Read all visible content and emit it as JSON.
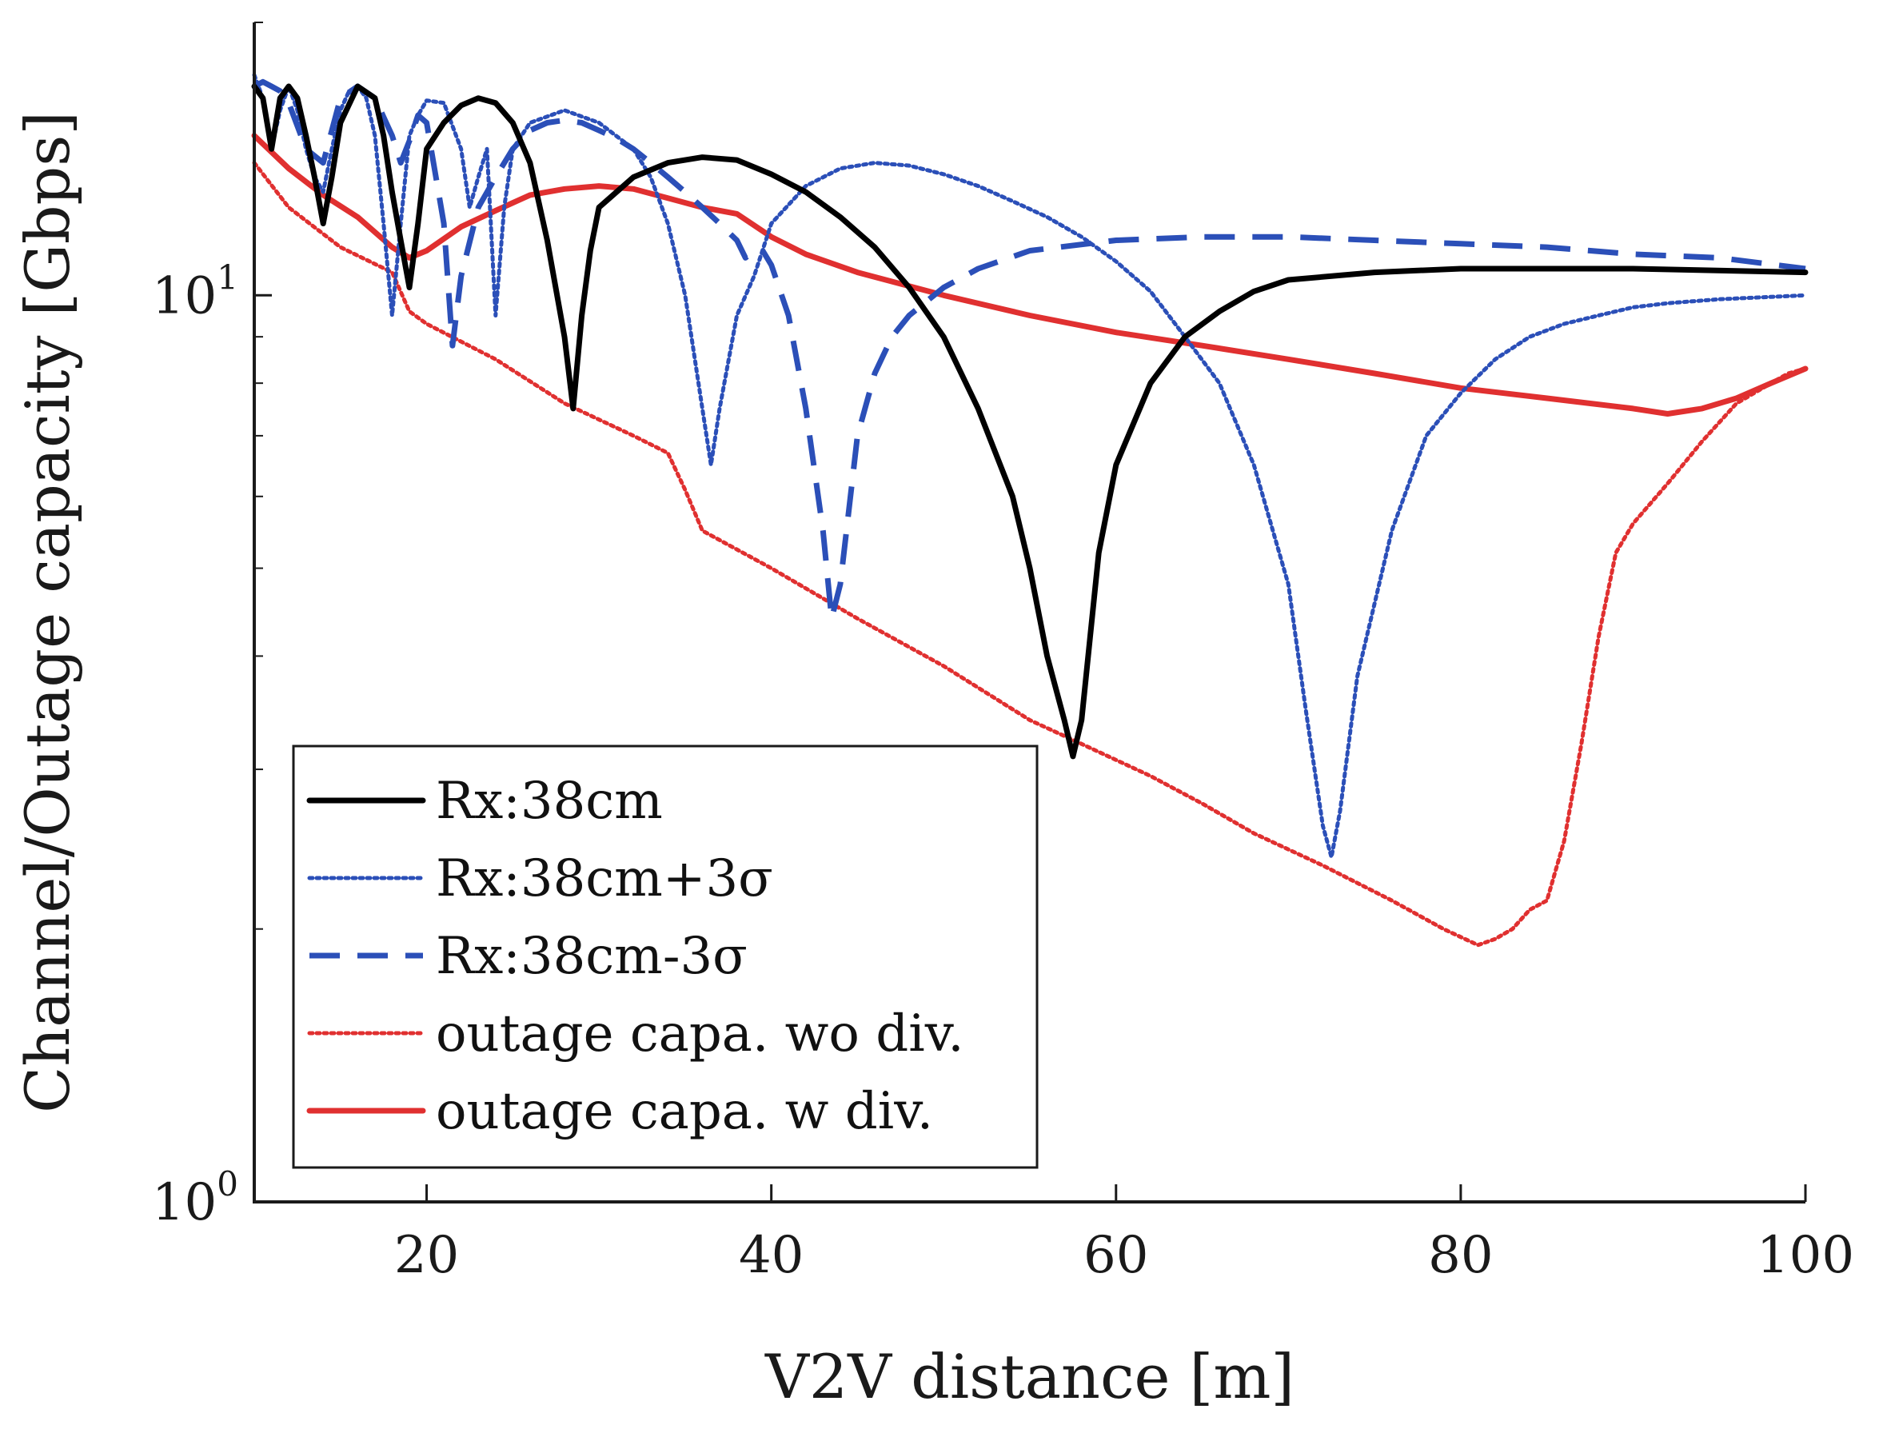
{
  "chart_data": {
    "type": "line",
    "xlabel": "V2V distance [m]",
    "ylabel": "Channel/Outage capacity [Gbps]",
    "xlim": [
      10,
      100
    ],
    "ylim": [
      1,
      20
    ],
    "yscale": "log",
    "xticks": [
      {
        "value": 20,
        "label": "20"
      },
      {
        "value": 40,
        "label": "40"
      },
      {
        "value": 60,
        "label": "60"
      },
      {
        "value": 80,
        "label": "80"
      },
      {
        "value": 100,
        "label": "100"
      }
    ],
    "yticks": [
      {
        "value": 1,
        "base": "10",
        "exp": "0"
      },
      {
        "value": 10,
        "base": "10",
        "exp": "1"
      }
    ],
    "legend_position": "bottom-left",
    "series": [
      {
        "name": "Rx:38cm",
        "color": "#000000",
        "style": "solid",
        "x": [
          10,
          10.5,
          11,
          11.5,
          12,
          12.5,
          13,
          13.5,
          14,
          14.5,
          15,
          16,
          17,
          17.5,
          18,
          18.5,
          19,
          19.5,
          20,
          21,
          22,
          23,
          24,
          25,
          26,
          27,
          28,
          28.5,
          29,
          29.5,
          30,
          32,
          34,
          36,
          38,
          40,
          42,
          44,
          46,
          48,
          50,
          52,
          54,
          55,
          56,
          57,
          57.5,
          58,
          58.5,
          59,
          60,
          62,
          64,
          66,
          68,
          70,
          75,
          80,
          90,
          100
        ],
        "y": [
          17,
          16.5,
          14.5,
          16.5,
          17,
          16.5,
          15,
          13.5,
          12,
          13.5,
          15.5,
          17,
          16.5,
          15,
          13,
          11.5,
          10.2,
          12,
          14.5,
          15.5,
          16.2,
          16.5,
          16.3,
          15.5,
          14,
          11.5,
          9,
          7.5,
          9.5,
          11.2,
          12.5,
          13.5,
          14,
          14.2,
          14.1,
          13.6,
          13,
          12.2,
          11.3,
          10.2,
          9,
          7.5,
          6,
          5,
          4,
          3.4,
          3.1,
          3.4,
          4.2,
          5.2,
          6.5,
          8,
          9,
          9.6,
          10.1,
          10.4,
          10.6,
          10.7,
          10.7,
          10.6
        ]
      },
      {
        "name": "Rx:38cm+3σ",
        "color": "#2b4fb8",
        "style": "dotted",
        "x": [
          10,
          10.5,
          11,
          11.5,
          12,
          12.5,
          13,
          13.5,
          14,
          14.5,
          15,
          15.5,
          16,
          16.5,
          17,
          17.5,
          18,
          18.5,
          19,
          19.5,
          20,
          21,
          22,
          22.5,
          23,
          23.5,
          24,
          24.5,
          25,
          26,
          28,
          30,
          32,
          33,
          34,
          35,
          36,
          36.5,
          37,
          38,
          39,
          40,
          42,
          44,
          46,
          48,
          50,
          52,
          54,
          56,
          58,
          60,
          62,
          64,
          66,
          68,
          70,
          71,
          72,
          72.5,
          73,
          74,
          76,
          78,
          80,
          82,
          84,
          86,
          88,
          90,
          92,
          95,
          100
        ],
        "y": [
          17.5,
          16.5,
          14.5,
          16,
          17,
          16,
          14.5,
          13.5,
          13,
          14.5,
          16,
          16.8,
          17,
          16.5,
          15,
          12,
          9.5,
          12,
          15,
          15.8,
          16.4,
          16.3,
          14.5,
          12.5,
          13.5,
          14.5,
          9.5,
          12.5,
          14.5,
          15.5,
          16,
          15.5,
          14.5,
          13.5,
          12,
          10,
          7.5,
          6.5,
          7.5,
          9.5,
          10.5,
          12,
          13.2,
          13.8,
          14,
          13.9,
          13.6,
          13.2,
          12.7,
          12.2,
          11.6,
          10.9,
          10.1,
          9,
          8,
          6.5,
          4.8,
          3.5,
          2.6,
          2.4,
          2.7,
          3.8,
          5.5,
          7,
          7.8,
          8.5,
          9,
          9.3,
          9.5,
          9.7,
          9.8,
          9.9,
          10
        ]
      },
      {
        "name": "Rx:38cm-3σ",
        "color": "#2b4fb8",
        "style": "dashed",
        "x": [
          10,
          10.5,
          11,
          11.5,
          12,
          13,
          14,
          15,
          16,
          17,
          18,
          18.5,
          19,
          19.5,
          20,
          21,
          21.5,
          22,
          23,
          24,
          25,
          26,
          27,
          28,
          29,
          30,
          31,
          32,
          33,
          34,
          35,
          36,
          37,
          38,
          38.5,
          39,
          39.5,
          40,
          41,
          42,
          43,
          43.5,
          44,
          44.5,
          45,
          46,
          47,
          48,
          50,
          52,
          55,
          60,
          65,
          70,
          75,
          80,
          85,
          90,
          95,
          100
        ],
        "y": [
          17,
          17.2,
          17,
          16.8,
          16.3,
          14.5,
          14,
          16.5,
          17,
          16.5,
          15,
          14,
          14.8,
          15.8,
          15.5,
          12,
          8.8,
          10.5,
          12.5,
          13.5,
          14.5,
          15.2,
          15.5,
          15.6,
          15.5,
          15.2,
          14.9,
          14.5,
          14,
          13.5,
          13,
          12.5,
          12,
          11.5,
          11,
          11.2,
          11.2,
          10.8,
          9.5,
          7.5,
          5.5,
          4.4,
          4.8,
          5.8,
          7,
          8.2,
          9,
          9.5,
          10.2,
          10.7,
          11.2,
          11.5,
          11.6,
          11.6,
          11.5,
          11.4,
          11.3,
          11.1,
          11,
          10.7
        ]
      },
      {
        "name": "outage capa. wo div.",
        "color": "#e03030",
        "style": "dotted",
        "x": [
          10,
          12,
          15,
          18,
          19,
          20,
          24,
          28,
          32,
          34,
          35,
          36,
          40,
          45,
          50,
          55,
          58,
          62,
          65,
          68,
          72,
          76,
          79,
          81,
          82,
          83,
          84,
          85,
          86,
          87,
          88,
          89,
          90,
          92,
          94,
          96,
          98,
          99,
          100
        ],
        "y": [
          14,
          12.5,
          11.3,
          10.6,
          9.6,
          9.3,
          8.5,
          7.6,
          7,
          6.7,
          6.1,
          5.5,
          5,
          4.4,
          3.9,
          3.4,
          3.2,
          2.95,
          2.75,
          2.55,
          2.35,
          2.15,
          2,
          1.92,
          1.95,
          2,
          2.1,
          2.15,
          2.5,
          3.2,
          4.2,
          5.2,
          5.6,
          6.2,
          6.9,
          7.6,
          8,
          8.2,
          8.3
        ]
      },
      {
        "name": "outage capa. w div.",
        "color": "#e03030",
        "style": "solid",
        "x": [
          10,
          12,
          14,
          16,
          18,
          19,
          20,
          22,
          24,
          26,
          28,
          30,
          32,
          34,
          36,
          38,
          40,
          42,
          45,
          50,
          55,
          60,
          65,
          70,
          75,
          80,
          85,
          90,
          92,
          94,
          96,
          98,
          100
        ],
        "y": [
          15,
          13.8,
          12.9,
          12.2,
          11.3,
          11,
          11.2,
          11.9,
          12.4,
          12.9,
          13.1,
          13.2,
          13.1,
          12.8,
          12.5,
          12.3,
          11.6,
          11.1,
          10.6,
          10,
          9.5,
          9.1,
          8.8,
          8.5,
          8.2,
          7.9,
          7.7,
          7.5,
          7.4,
          7.5,
          7.7,
          8,
          8.3
        ]
      }
    ]
  }
}
